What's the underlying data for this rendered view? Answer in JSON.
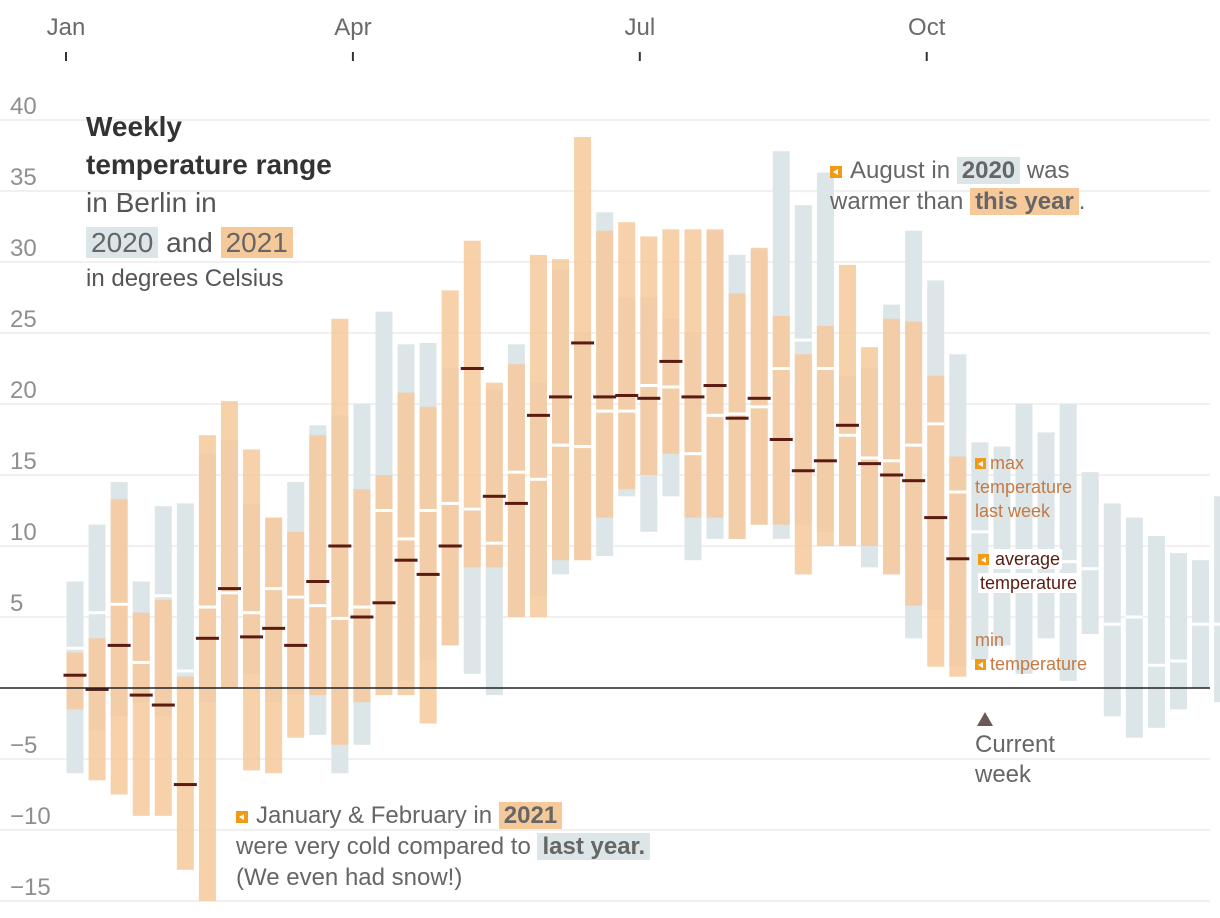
{
  "chart_data": {
    "type": "bar",
    "title_bold_1": "Weekly temperature range",
    "title_rest": "in Berlin in",
    "title_and": "and",
    "subtitle": "in degrees Celsius",
    "year_a": "2020",
    "year_b": "2021",
    "yticks": [
      40,
      35,
      30,
      25,
      20,
      15,
      10,
      5,
      -5,
      -10,
      -15
    ],
    "ylim": [
      -15,
      40
    ],
    "months": [
      {
        "label": "Jan",
        "week": 1
      },
      {
        "label": "Apr",
        "week": 14
      },
      {
        "label": "Jul",
        "week": 27
      },
      {
        "label": "Oct",
        "week": 40
      }
    ],
    "colors": {
      "year_2020": "#dce5e8",
      "year_2021": "#f6c99b",
      "avg_2021": "#5a1b12",
      "avg_2020": "#ffffff",
      "zero_line": "#222222",
      "grid": "#e2e2e2"
    },
    "series_2020": [
      {
        "week": 1,
        "min": -6.0,
        "max": 7.5,
        "avg": 2.8
      },
      {
        "week": 2,
        "min": -3.0,
        "max": 11.5,
        "avg": 5.3
      },
      {
        "week": 3,
        "min": -2.0,
        "max": 14.5,
        "avg": 5.9
      },
      {
        "week": 4,
        "min": -1.0,
        "max": 7.5,
        "avg": 1.8
      },
      {
        "week": 5,
        "min": -2.0,
        "max": 12.8,
        "avg": 6.5
      },
      {
        "week": 6,
        "min": 0.0,
        "max": 13.0,
        "avg": 1.2
      },
      {
        "week": 7,
        "min": -1.0,
        "max": 16.5,
        "avg": 5.7
      },
      {
        "week": 8,
        "min": 0.0,
        "max": 17.5,
        "avg": 6.7
      },
      {
        "week": 9,
        "min": 1.0,
        "max": 13.0,
        "avg": 5.3
      },
      {
        "week": 10,
        "min": -1.0,
        "max": 12.0,
        "avg": 7.0
      },
      {
        "week": 11,
        "min": -0.5,
        "max": 14.5,
        "avg": 6.4
      },
      {
        "week": 12,
        "min": -3.3,
        "max": 18.5,
        "avg": 5.8
      },
      {
        "week": 13,
        "min": -6.0,
        "max": 19.2,
        "avg": 4.9
      },
      {
        "week": 14,
        "min": -4.0,
        "max": 20.0,
        "avg": 5.7
      },
      {
        "week": 15,
        "min": 0.0,
        "max": 26.5,
        "avg": 12.5
      },
      {
        "week": 16,
        "min": 0.5,
        "max": 24.2,
        "avg": 10.5
      },
      {
        "week": 17,
        "min": 2.0,
        "max": 24.3,
        "avg": 12.5
      },
      {
        "week": 18,
        "min": 3.0,
        "max": 22.5,
        "avg": 13.0
      },
      {
        "week": 19,
        "min": 1.0,
        "max": 12.8,
        "avg": 12.6
      },
      {
        "week": 20,
        "min": -0.5,
        "max": 21.0,
        "avg": 10.2
      },
      {
        "week": 21,
        "min": 5.0,
        "max": 24.2,
        "avg": 15.2
      },
      {
        "week": 22,
        "min": 6.5,
        "max": 21.5,
        "avg": 14.7
      },
      {
        "week": 23,
        "min": 8.0,
        "max": 29.5,
        "avg": 17.1
      },
      {
        "week": 24,
        "min": 9.0,
        "max": 25.0,
        "avg": 17.0
      },
      {
        "week": 25,
        "min": 9.3,
        "max": 33.5,
        "avg": 19.5
      },
      {
        "week": 26,
        "min": 13.5,
        "max": 27.5,
        "avg": 19.5
      },
      {
        "week": 27,
        "min": 11.0,
        "max": 27.5,
        "avg": 21.3
      },
      {
        "week": 28,
        "min": 13.5,
        "max": 26.0,
        "avg": 21.2
      },
      {
        "week": 29,
        "min": 9.0,
        "max": 25.0,
        "avg": 16.5
      },
      {
        "week": 30,
        "min": 10.5,
        "max": 32.2,
        "avg": 19.2
      },
      {
        "week": 31,
        "min": 10.5,
        "max": 30.5,
        "avg": 19.3
      },
      {
        "week": 32,
        "min": 11.5,
        "max": 30.8,
        "avg": 19.8
      },
      {
        "week": 33,
        "min": 10.5,
        "max": 37.8,
        "avg": 22.5
      },
      {
        "week": 34,
        "min": 11.5,
        "max": 34.0,
        "avg": 24.5
      },
      {
        "week": 35,
        "min": 11.0,
        "max": 36.3,
        "avg": 22.5
      },
      {
        "week": 36,
        "min": 10.0,
        "max": 22.0,
        "avg": 17.8
      },
      {
        "week": 37,
        "min": 8.5,
        "max": 22.5,
        "avg": 16.2
      },
      {
        "week": 38,
        "min": 8.0,
        "max": 27.0,
        "avg": 16.0
      },
      {
        "week": 39,
        "min": 3.5,
        "max": 32.2,
        "avg": 17.1
      },
      {
        "week": 40,
        "min": 5.5,
        "max": 28.7,
        "avg": 18.6
      },
      {
        "week": 41,
        "min": 1.5,
        "max": 23.5,
        "avg": 13.8
      },
      {
        "week": 42,
        "min": 2.0,
        "max": 17.3,
        "avg": 11.0
      },
      {
        "week": 43,
        "min": 3.0,
        "max": 17.0,
        "avg": 8.5
      },
      {
        "week": 44,
        "min": 1.0,
        "max": 20.0,
        "avg": 8.9
      },
      {
        "week": 45,
        "min": 3.5,
        "max": 18.0,
        "avg": 8.5
      },
      {
        "week": 46,
        "min": 0.5,
        "max": 20.0,
        "avg": 8.9
      },
      {
        "week": 47,
        "min": 3.8,
        "max": 15.2,
        "avg": 8.4
      },
      {
        "week": 48,
        "min": -2.0,
        "max": 13.0,
        "avg": 4.5
      },
      {
        "week": 49,
        "min": -3.5,
        "max": 12.0,
        "avg": 5.0
      },
      {
        "week": 50,
        "min": -2.8,
        "max": 10.7,
        "avg": 1.6
      },
      {
        "week": 51,
        "min": -1.5,
        "max": 9.5,
        "avg": 1.9
      },
      {
        "week": 52,
        "min": 0.0,
        "max": 9.0,
        "avg": 4.5
      },
      {
        "week": 53,
        "min": -1.0,
        "max": 13.5,
        "avg": 4.5
      }
    ],
    "series_2021": [
      {
        "week": 1,
        "min": -1.5,
        "max": 2.5,
        "avg": 0.9
      },
      {
        "week": 2,
        "min": -6.5,
        "max": 3.5,
        "avg": -0.1
      },
      {
        "week": 3,
        "min": -7.5,
        "max": 13.3,
        "avg": 3.0
      },
      {
        "week": 4,
        "min": -9.0,
        "max": 5.3,
        "avg": -0.5
      },
      {
        "week": 5,
        "min": -9.0,
        "max": 6.2,
        "avg": -1.2
      },
      {
        "week": 6,
        "min": -12.8,
        "max": 0.8,
        "avg": -6.8
      },
      {
        "week": 7,
        "min": -15.0,
        "max": 17.8,
        "avg": 3.5
      },
      {
        "week": 8,
        "min": 0.0,
        "max": 20.2,
        "avg": 7.0
      },
      {
        "week": 9,
        "min": -5.8,
        "max": 16.8,
        "avg": 3.6
      },
      {
        "week": 10,
        "min": -6.0,
        "max": 12.0,
        "avg": 4.2
      },
      {
        "week": 11,
        "min": -3.5,
        "max": 11.0,
        "avg": 3.0
      },
      {
        "week": 12,
        "min": -0.5,
        "max": 17.8,
        "avg": 7.5
      },
      {
        "week": 13,
        "min": -4.0,
        "max": 26.0,
        "avg": 10.0
      },
      {
        "week": 14,
        "min": -1.0,
        "max": 14.0,
        "avg": 5.0
      },
      {
        "week": 15,
        "min": -0.5,
        "max": 15.0,
        "avg": 6.0
      },
      {
        "week": 16,
        "min": -0.5,
        "max": 20.8,
        "avg": 9.0
      },
      {
        "week": 17,
        "min": -2.5,
        "max": 19.8,
        "avg": 8.0
      },
      {
        "week": 18,
        "min": 3.0,
        "max": 28.0,
        "avg": 10.0
      },
      {
        "week": 19,
        "min": 8.5,
        "max": 31.5,
        "avg": 22.5
      },
      {
        "week": 20,
        "min": 8.5,
        "max": 21.5,
        "avg": 13.5
      },
      {
        "week": 21,
        "min": 5.0,
        "max": 22.8,
        "avg": 13.0
      },
      {
        "week": 22,
        "min": 5.0,
        "max": 30.5,
        "avg": 19.2
      },
      {
        "week": 23,
        "min": 9.0,
        "max": 30.2,
        "avg": 20.5
      },
      {
        "week": 24,
        "min": 9.0,
        "max": 38.8,
        "avg": 24.3
      },
      {
        "week": 25,
        "min": 12.0,
        "max": 32.2,
        "avg": 20.5
      },
      {
        "week": 26,
        "min": 14.0,
        "max": 32.8,
        "avg": 20.6
      },
      {
        "week": 27,
        "min": 15.0,
        "max": 31.8,
        "avg": 20.4
      },
      {
        "week": 28,
        "min": 16.5,
        "max": 32.3,
        "avg": 23.0
      },
      {
        "week": 29,
        "min": 12.0,
        "max": 32.3,
        "avg": 20.5
      },
      {
        "week": 30,
        "min": 12.0,
        "max": 32.3,
        "avg": 21.3
      },
      {
        "week": 31,
        "min": 10.5,
        "max": 27.8,
        "avg": 19.0
      },
      {
        "week": 32,
        "min": 11.5,
        "max": 31.0,
        "avg": 20.4
      },
      {
        "week": 33,
        "min": 11.5,
        "max": 26.2,
        "avg": 17.5
      },
      {
        "week": 34,
        "min": 8.0,
        "max": 23.5,
        "avg": 15.3
      },
      {
        "week": 35,
        "min": 10.0,
        "max": 25.5,
        "avg": 16.0
      },
      {
        "week": 36,
        "min": 10.0,
        "max": 29.8,
        "avg": 18.5
      },
      {
        "week": 37,
        "min": 10.0,
        "max": 24.0,
        "avg": 15.8
      },
      {
        "week": 38,
        "min": 8.0,
        "max": 26.0,
        "avg": 15.0
      },
      {
        "week": 39,
        "min": 5.8,
        "max": 25.8,
        "avg": 14.6
      },
      {
        "week": 40,
        "min": 1.5,
        "max": 22.0,
        "avg": 12.0
      },
      {
        "week": 41,
        "min": 0.8,
        "max": 16.3,
        "avg": 9.1
      }
    ],
    "current_week": 42
  },
  "annotations": {
    "august_prefix": "August in",
    "august_year": "2020",
    "august_mid": "was",
    "august_line2": "warmer than",
    "august_this_year": "this year",
    "august_end": ".",
    "winter_line1": "January & February in",
    "winter_year": "2021",
    "winter_line2": "were very cold compared to",
    "winter_last_year": "last year.",
    "winter_line3": "(We even had snow!)"
  },
  "legend": {
    "max_1": "max",
    "max_2": "temperature",
    "max_3": "last week",
    "avg_1": "average",
    "avg_2": "temperature",
    "min_1": "min",
    "min_2": "temperature"
  },
  "current_week_label_1": "Current",
  "current_week_label_2": "week"
}
